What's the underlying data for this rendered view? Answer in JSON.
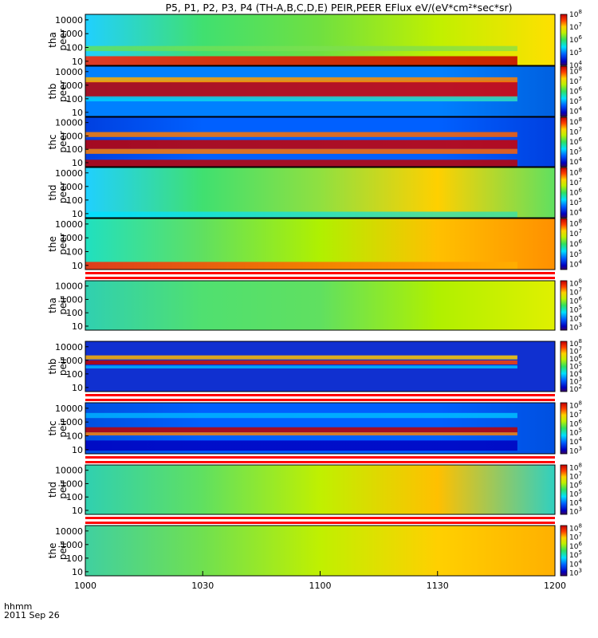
{
  "chart_data": {
    "type": "heatmap",
    "title": "P5, P1, P2, P3, P4 (TH-A,B,C,D,E) PEIR,PEER EFlux eV/(eV*cm²*sec*sr)",
    "x_ticks": [
      "1000",
      "1030",
      "1100",
      "1130",
      "1200"
    ],
    "x_range_hhmm": [
      "1000",
      "1200"
    ],
    "y_scale": "log",
    "y_ticks": [
      "10",
      "100",
      "1000",
      "10000"
    ],
    "y_range_eV": [
      5,
      25000
    ],
    "footer": {
      "time_label": "hhmm",
      "date_label": "2011 Sep 26"
    },
    "panels": [
      {
        "probe": "tha",
        "species": "peer",
        "cbar_exponents": [
          4,
          5,
          6,
          7,
          8
        ],
        "cbar_range_log": [
          4,
          8
        ],
        "separator_after": false
      },
      {
        "probe": "thb",
        "species": "peer",
        "cbar_exponents": [
          4,
          5,
          6,
          7,
          8
        ],
        "cbar_range_log": [
          3.5,
          8.5
        ],
        "separator_after": false
      },
      {
        "probe": "thc",
        "species": "peer",
        "cbar_exponents": [
          4,
          5,
          6,
          7,
          8
        ],
        "cbar_range_log": [
          3.5,
          8.5
        ],
        "separator_after": false
      },
      {
        "probe": "thd",
        "species": "peer",
        "cbar_exponents": [
          4,
          5,
          6,
          7,
          8
        ],
        "cbar_range_log": [
          3.5,
          8.5
        ],
        "separator_after": false
      },
      {
        "probe": "the",
        "species": "peer",
        "cbar_exponents": [
          4,
          5,
          6,
          7,
          8
        ],
        "cbar_range_log": [
          3.5,
          8.5
        ],
        "separator_after": true
      },
      {
        "probe": "tha",
        "species": "peir",
        "cbar_exponents": [
          3,
          4,
          5,
          6,
          7,
          8
        ],
        "cbar_range_log": [
          2.7,
          8.3
        ],
        "separator_after": false
      },
      {
        "probe": "thb",
        "species": "peir",
        "cbar_exponents": [
          2,
          3,
          4,
          5,
          6,
          7,
          8
        ],
        "cbar_range_log": [
          1.7,
          8.3
        ],
        "separator_after": true
      },
      {
        "probe": "thc",
        "species": "peir",
        "cbar_exponents": [
          3,
          4,
          5,
          6,
          7,
          8
        ],
        "cbar_range_log": [
          2.7,
          8.3
        ],
        "separator_after": true
      },
      {
        "probe": "thd",
        "species": "peir",
        "cbar_exponents": [
          3,
          4,
          5,
          6,
          7,
          8
        ],
        "cbar_range_log": [
          2.7,
          8.3
        ],
        "separator_after": true
      },
      {
        "probe": "the",
        "species": "peir",
        "cbar_exponents": [
          3,
          4,
          5,
          6,
          7,
          8
        ],
        "cbar_range_log": [
          2.7,
          8.3
        ],
        "separator_after": false
      }
    ]
  }
}
